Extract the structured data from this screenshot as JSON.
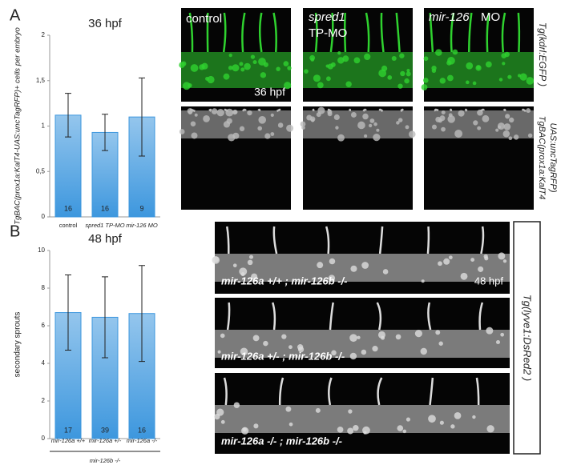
{
  "chart_data": [
    {
      "type": "bar",
      "title": "36 hpf",
      "y_label": "TgBAC(prox1a:KalT4-UAS:uncTagRFP)+ cells per embryo",
      "categories": [
        "control",
        "spred1 TP-MO",
        "mir-126 MO"
      ],
      "values": [
        1.12,
        0.93,
        1.1
      ],
      "errors": [
        0.24,
        0.2,
        0.43
      ],
      "counts": [
        "16",
        "16",
        "9"
      ],
      "color": "#3d97de",
      "ylim": [
        0,
        2
      ],
      "yticks": [
        0,
        {
          "value": 0.5,
          "label": "0,5"
        },
        1,
        {
          "value": 1.5,
          "label": "1,5"
        },
        2
      ]
    },
    {
      "type": "bar",
      "title": "48 hpf",
      "y_label": "secondary sprouts",
      "categories": [
        "mir-126a +/+",
        "mir-126a +/-",
        "mir-126a -/-"
      ],
      "values": [
        6.7,
        6.45,
        6.65
      ],
      "errors": [
        2.0,
        2.15,
        2.55
      ],
      "counts": [
        "17",
        "39",
        "16"
      ],
      "color": "#3d97de",
      "group_label": "mir-126b -/-",
      "ylim": [
        0,
        10
      ],
      "yticks": [
        0,
        2,
        4,
        6,
        8,
        10
      ]
    }
  ],
  "panel_a": {
    "label": "A",
    "columns": [
      "control",
      "spred1",
      "mir-126"
    ],
    "column_suffix": [
      "TP-MO",
      "MO"
    ],
    "inset_label": "36 hpf",
    "row_labels": [
      "Tg(kdrl:EGFP )",
      "TgBAC(prox1a:KalT4",
      "UAS:uncTagRFP)"
    ]
  },
  "panel_b": {
    "label": "B",
    "inset_label": "48 hpf",
    "row_labels": [
      "mir-126a +/+ ; mir-126b -/-",
      "mir-126a +/- ; mir-126b -/-",
      "mir-126a -/- ; mir-126b -/-"
    ],
    "side_label": "Tg(lyve1:DsRed2 )"
  }
}
